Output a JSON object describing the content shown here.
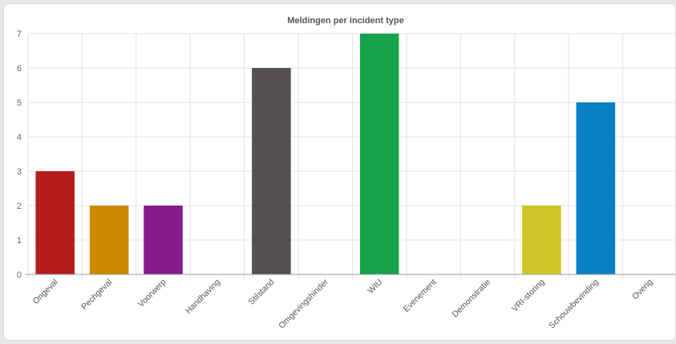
{
  "chart_data": {
    "type": "bar",
    "title": "Meldingen per incident type",
    "xlabel": "",
    "ylabel": "",
    "ylim": [
      0,
      7
    ],
    "yticks": [
      0,
      1,
      2,
      3,
      4,
      5,
      6,
      7
    ],
    "grid": true,
    "categories": [
      "Ongeval",
      "Pechgeval",
      "Voorwerp",
      "Handhaving",
      "Stilstand",
      "Omgevingshinder",
      "WIU",
      "Evenement",
      "Demonstratie",
      "VRI-storing",
      "Schouwbevinding",
      "Overig"
    ],
    "values": [
      3,
      2,
      2,
      0,
      6,
      0,
      7,
      0,
      0,
      2,
      5,
      0
    ],
    "colors": [
      "#b71c1c",
      "#cc8800",
      "#881a8f",
      "#888888",
      "#545050",
      "#888888",
      "#17a34a",
      "#888888",
      "#888888",
      "#d0c62a",
      "#0780c8",
      "#888888"
    ]
  }
}
